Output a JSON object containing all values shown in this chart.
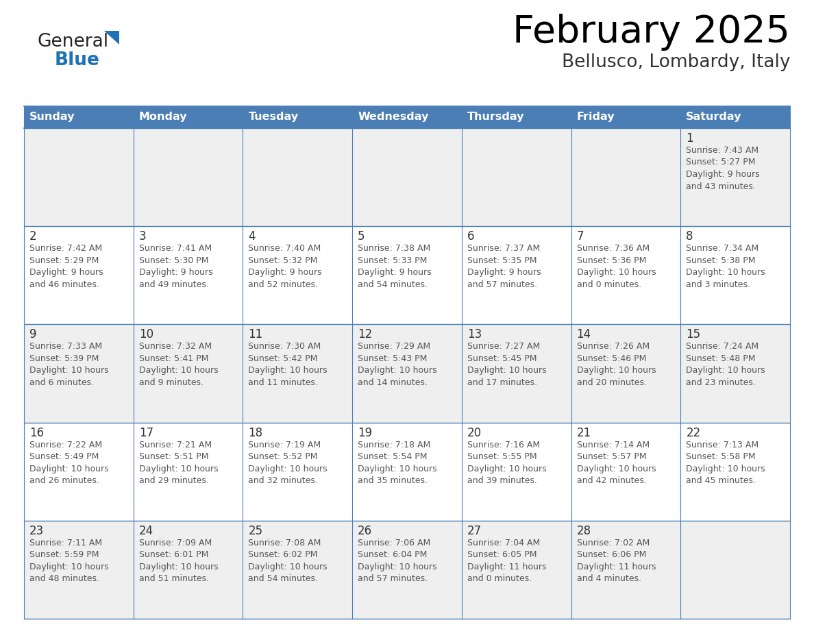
{
  "title": "February 2025",
  "subtitle": "Bellusco, Lombardy, Italy",
  "header_bg": "#4A7EB5",
  "header_text_color": "#FFFFFF",
  "row_bg_even": "#EFEFEF",
  "row_bg_odd": "#FFFFFF",
  "border_color": "#4A7EB5",
  "day_headers": [
    "Sunday",
    "Monday",
    "Tuesday",
    "Wednesday",
    "Thursday",
    "Friday",
    "Saturday"
  ],
  "title_color": "#000000",
  "subtitle_color": "#333333",
  "day_number_color": "#333333",
  "info_color": "#555555",
  "logo_general_color": "#222222",
  "logo_blue_color": "#1F72B4",
  "logo_triangle_color": "#1F72B4",
  "calendar": [
    [
      {
        "day": null,
        "info": null
      },
      {
        "day": null,
        "info": null
      },
      {
        "day": null,
        "info": null
      },
      {
        "day": null,
        "info": null
      },
      {
        "day": null,
        "info": null
      },
      {
        "day": null,
        "info": null
      },
      {
        "day": "1",
        "info": "Sunrise: 7:43 AM\nSunset: 5:27 PM\nDaylight: 9 hours\nand 43 minutes."
      }
    ],
    [
      {
        "day": "2",
        "info": "Sunrise: 7:42 AM\nSunset: 5:29 PM\nDaylight: 9 hours\nand 46 minutes."
      },
      {
        "day": "3",
        "info": "Sunrise: 7:41 AM\nSunset: 5:30 PM\nDaylight: 9 hours\nand 49 minutes."
      },
      {
        "day": "4",
        "info": "Sunrise: 7:40 AM\nSunset: 5:32 PM\nDaylight: 9 hours\nand 52 minutes."
      },
      {
        "day": "5",
        "info": "Sunrise: 7:38 AM\nSunset: 5:33 PM\nDaylight: 9 hours\nand 54 minutes."
      },
      {
        "day": "6",
        "info": "Sunrise: 7:37 AM\nSunset: 5:35 PM\nDaylight: 9 hours\nand 57 minutes."
      },
      {
        "day": "7",
        "info": "Sunrise: 7:36 AM\nSunset: 5:36 PM\nDaylight: 10 hours\nand 0 minutes."
      },
      {
        "day": "8",
        "info": "Sunrise: 7:34 AM\nSunset: 5:38 PM\nDaylight: 10 hours\nand 3 minutes."
      }
    ],
    [
      {
        "day": "9",
        "info": "Sunrise: 7:33 AM\nSunset: 5:39 PM\nDaylight: 10 hours\nand 6 minutes."
      },
      {
        "day": "10",
        "info": "Sunrise: 7:32 AM\nSunset: 5:41 PM\nDaylight: 10 hours\nand 9 minutes."
      },
      {
        "day": "11",
        "info": "Sunrise: 7:30 AM\nSunset: 5:42 PM\nDaylight: 10 hours\nand 11 minutes."
      },
      {
        "day": "12",
        "info": "Sunrise: 7:29 AM\nSunset: 5:43 PM\nDaylight: 10 hours\nand 14 minutes."
      },
      {
        "day": "13",
        "info": "Sunrise: 7:27 AM\nSunset: 5:45 PM\nDaylight: 10 hours\nand 17 minutes."
      },
      {
        "day": "14",
        "info": "Sunrise: 7:26 AM\nSunset: 5:46 PM\nDaylight: 10 hours\nand 20 minutes."
      },
      {
        "day": "15",
        "info": "Sunrise: 7:24 AM\nSunset: 5:48 PM\nDaylight: 10 hours\nand 23 minutes."
      }
    ],
    [
      {
        "day": "16",
        "info": "Sunrise: 7:22 AM\nSunset: 5:49 PM\nDaylight: 10 hours\nand 26 minutes."
      },
      {
        "day": "17",
        "info": "Sunrise: 7:21 AM\nSunset: 5:51 PM\nDaylight: 10 hours\nand 29 minutes."
      },
      {
        "day": "18",
        "info": "Sunrise: 7:19 AM\nSunset: 5:52 PM\nDaylight: 10 hours\nand 32 minutes."
      },
      {
        "day": "19",
        "info": "Sunrise: 7:18 AM\nSunset: 5:54 PM\nDaylight: 10 hours\nand 35 minutes."
      },
      {
        "day": "20",
        "info": "Sunrise: 7:16 AM\nSunset: 5:55 PM\nDaylight: 10 hours\nand 39 minutes."
      },
      {
        "day": "21",
        "info": "Sunrise: 7:14 AM\nSunset: 5:57 PM\nDaylight: 10 hours\nand 42 minutes."
      },
      {
        "day": "22",
        "info": "Sunrise: 7:13 AM\nSunset: 5:58 PM\nDaylight: 10 hours\nand 45 minutes."
      }
    ],
    [
      {
        "day": "23",
        "info": "Sunrise: 7:11 AM\nSunset: 5:59 PM\nDaylight: 10 hours\nand 48 minutes."
      },
      {
        "day": "24",
        "info": "Sunrise: 7:09 AM\nSunset: 6:01 PM\nDaylight: 10 hours\nand 51 minutes."
      },
      {
        "day": "25",
        "info": "Sunrise: 7:08 AM\nSunset: 6:02 PM\nDaylight: 10 hours\nand 54 minutes."
      },
      {
        "day": "26",
        "info": "Sunrise: 7:06 AM\nSunset: 6:04 PM\nDaylight: 10 hours\nand 57 minutes."
      },
      {
        "day": "27",
        "info": "Sunrise: 7:04 AM\nSunset: 6:05 PM\nDaylight: 11 hours\nand 0 minutes."
      },
      {
        "day": "28",
        "info": "Sunrise: 7:02 AM\nSunset: 6:06 PM\nDaylight: 11 hours\nand 4 minutes."
      },
      {
        "day": null,
        "info": null
      }
    ]
  ]
}
